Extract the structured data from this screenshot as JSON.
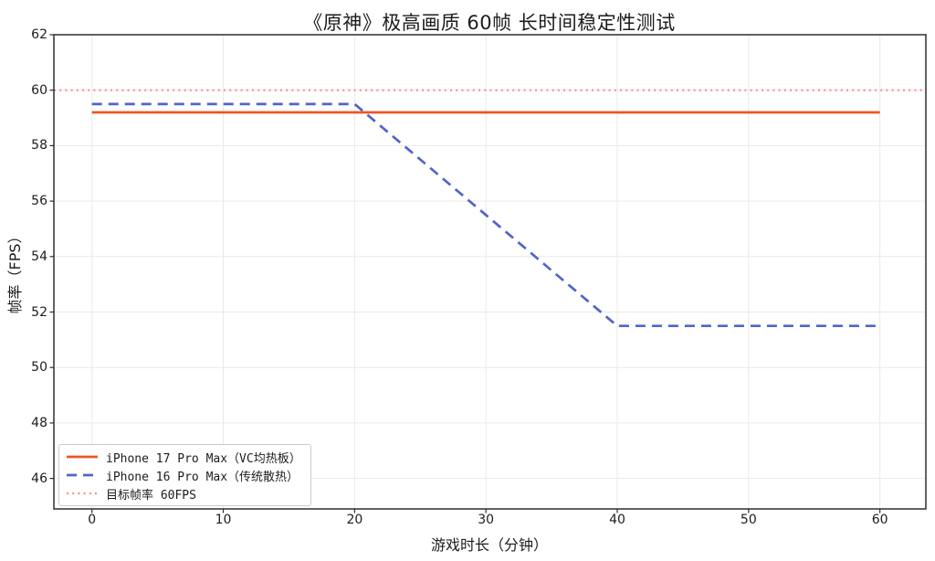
{
  "chart_data": {
    "type": "line",
    "title": "《原神》极高画质 60帧 长时间稳定性测试",
    "xlabel": "游戏时长（分钟）",
    "ylabel": "帧率（FPS）",
    "xlim": [
      -2.9,
      63.5
    ],
    "ylim": [
      44.9,
      62
    ],
    "xticks": [
      0,
      10,
      20,
      30,
      40,
      50,
      60
    ],
    "yticks": [
      46,
      48,
      50,
      52,
      54,
      56,
      58,
      60,
      62
    ],
    "grid": true,
    "grid_color": "#e9e9e9",
    "spine_color": "#2e2e2e",
    "tick_color": "#2e2e2e",
    "legend_position": "lower left",
    "series": [
      {
        "name": "iPhone 17 Pro Max（VC均热板）",
        "style": "solid",
        "color": "#ee5526",
        "line_width": 2.7,
        "x": [
          0,
          10,
          20,
          30,
          40,
          50,
          60
        ],
        "y": [
          59.2,
          59.2,
          59.2,
          59.2,
          59.2,
          59.2,
          59.2
        ]
      },
      {
        "name": "iPhone 16 Pro Max（传统散热）",
        "style": "dashed",
        "color": "#5263c9",
        "line_width": 2.7,
        "x": [
          0,
          10,
          20,
          30,
          40,
          50,
          60
        ],
        "y": [
          59.5,
          59.5,
          59.5,
          55.5,
          51.5,
          51.5,
          51.5
        ]
      },
      {
        "name": "目标帧率 60FPS",
        "style": "dotted",
        "color": "#f98c8c",
        "line_width": 2.2,
        "type": "hline",
        "value": 60
      }
    ]
  }
}
